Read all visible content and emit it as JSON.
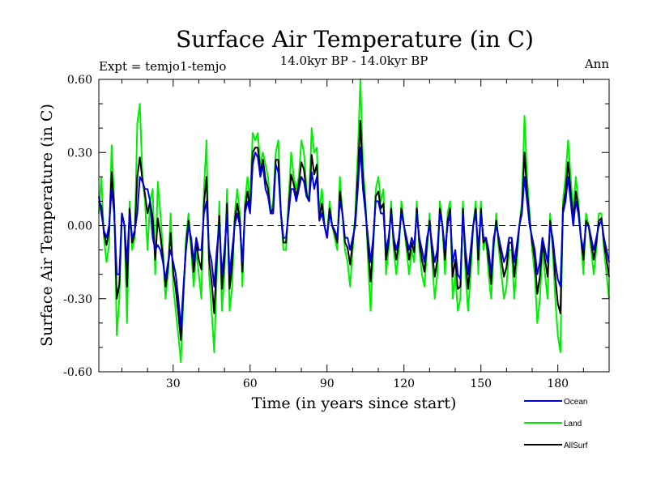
{
  "chart_data": {
    "type": "line",
    "title": "Surface Air Temperature (in C)",
    "subtitle": "14.0kyr BP - 14.0kyr BP",
    "left_label": "Expt = temjo1-temjo",
    "right_label": "Ann",
    "xlabel": "Time (in years since start)",
    "ylabel": "Surface Air Temperature (in C)",
    "xlim": [
      1,
      200
    ],
    "ylim": [
      -0.6,
      0.6
    ],
    "xticks": [
      30,
      60,
      90,
      120,
      150,
      180
    ],
    "yticks": [
      -0.6,
      -0.3,
      0.0,
      0.3,
      0.6
    ],
    "ytick_labels": [
      "-0.60",
      "-0.30",
      "0.00",
      "0.30",
      "0.60"
    ],
    "zero_line": true,
    "legend_position": "bottom-right, below plot",
    "series": [
      {
        "name": "Ocean",
        "color": "#0000dd",
        "values": [
          0.12,
          0.05,
          -0.02,
          -0.05,
          0.0,
          0.15,
          0.05,
          -0.2,
          -0.2,
          0.05,
          0.0,
          -0.15,
          0.05,
          -0.05,
          -0.02,
          0.05,
          0.2,
          0.18,
          0.15,
          0.15,
          0.1,
          -0.05,
          -0.1,
          -0.08,
          -0.1,
          -0.15,
          -0.22,
          -0.15,
          -0.1,
          -0.15,
          -0.2,
          -0.3,
          -0.42,
          -0.25,
          -0.1,
          0.0,
          -0.05,
          -0.15,
          -0.05,
          -0.1,
          -0.1,
          0.05,
          0.1,
          -0.1,
          -0.15,
          -0.25,
          -0.1,
          0.0,
          -0.2,
          -0.1,
          0.05,
          -0.2,
          -0.1,
          0.0,
          0.05,
          0.0,
          -0.15,
          0.05,
          0.1,
          0.05,
          0.25,
          0.3,
          0.28,
          0.2,
          0.25,
          0.15,
          0.12,
          0.05,
          0.05,
          0.25,
          0.22,
          0.05,
          -0.05,
          -0.05,
          0.05,
          0.15,
          0.15,
          0.1,
          0.15,
          0.2,
          0.18,
          0.12,
          0.1,
          0.22,
          0.15,
          0.2,
          0.02,
          0.05,
          0.0,
          -0.05,
          0.05,
          0.0,
          -0.02,
          -0.05,
          0.1,
          0.05,
          -0.05,
          -0.05,
          -0.1,
          -0.05,
          0.0,
          0.15,
          0.32,
          0.15,
          0.05,
          -0.05,
          -0.15,
          -0.05,
          0.1,
          0.1,
          0.05,
          0.05,
          -0.1,
          -0.05,
          0.05,
          -0.05,
          -0.1,
          -0.05,
          0.05,
          0.0,
          -0.05,
          -0.1,
          -0.05,
          -0.08,
          0.05,
          -0.05,
          -0.1,
          -0.15,
          -0.05,
          0.0,
          -0.08,
          -0.15,
          -0.1,
          0.05,
          0.0,
          -0.1,
          0.0,
          0.05,
          -0.15,
          -0.1,
          -0.2,
          -0.22,
          0.05,
          -0.1,
          -0.2,
          -0.1,
          0.0,
          0.05,
          -0.1,
          0.05,
          -0.05,
          -0.05,
          -0.1,
          -0.2,
          -0.05,
          0.0,
          -0.05,
          -0.1,
          -0.15,
          -0.12,
          -0.05,
          -0.05,
          -0.15,
          -0.08,
          0.0,
          0.05,
          0.2,
          0.1,
          0.0,
          -0.05,
          -0.1,
          -0.2,
          -0.15,
          -0.05,
          -0.1,
          -0.15,
          0.0,
          -0.05,
          -0.15,
          -0.22,
          -0.25,
          0.05,
          0.1,
          0.2,
          0.1,
          0.0,
          0.1,
          0.05,
          -0.05,
          -0.1,
          0.0,
          0.0,
          -0.05,
          -0.1,
          -0.05,
          0.0,
          0.02,
          -0.05,
          -0.1,
          -0.15
        ]
      },
      {
        "name": "Land",
        "color": "#00ee00",
        "values": [
          0.05,
          0.2,
          -0.05,
          -0.15,
          -0.08,
          0.33,
          0.1,
          -0.45,
          -0.3,
          0.05,
          0.0,
          -0.4,
          0.1,
          -0.1,
          -0.05,
          0.42,
          0.5,
          0.2,
          0.1,
          -0.1,
          0.1,
          0.15,
          -0.2,
          0.18,
          0.05,
          -0.1,
          -0.3,
          -0.2,
          0.05,
          -0.25,
          -0.35,
          -0.45,
          -0.56,
          -0.3,
          -0.05,
          0.05,
          -0.1,
          -0.25,
          -0.1,
          -0.2,
          -0.3,
          0.15,
          0.35,
          -0.2,
          -0.35,
          -0.52,
          -0.2,
          0.1,
          -0.35,
          -0.2,
          0.15,
          -0.35,
          -0.25,
          0.05,
          0.15,
          0.05,
          -0.25,
          0.1,
          0.2,
          0.1,
          0.38,
          0.35,
          0.38,
          0.25,
          0.3,
          0.25,
          0.2,
          0.05,
          0.1,
          0.3,
          0.35,
          0.05,
          -0.1,
          -0.1,
          0.1,
          0.3,
          0.2,
          0.15,
          0.2,
          0.35,
          0.3,
          0.15,
          0.1,
          0.4,
          0.3,
          0.32,
          0.05,
          0.15,
          0.0,
          -0.05,
          0.1,
          0.0,
          -0.05,
          -0.1,
          0.2,
          0.05,
          -0.1,
          -0.15,
          -0.25,
          -0.1,
          0.05,
          0.3,
          0.6,
          0.25,
          0.1,
          -0.15,
          -0.35,
          -0.1,
          0.15,
          0.2,
          0.1,
          0.15,
          -0.2,
          -0.1,
          0.1,
          -0.1,
          -0.2,
          -0.1,
          0.1,
          0.0,
          -0.1,
          -0.2,
          -0.1,
          -0.15,
          0.1,
          -0.1,
          -0.2,
          -0.25,
          -0.1,
          0.05,
          -0.15,
          -0.3,
          -0.2,
          0.1,
          0.0,
          -0.2,
          0.05,
          0.1,
          -0.3,
          -0.2,
          -0.35,
          -0.3,
          0.1,
          -0.2,
          -0.35,
          -0.2,
          0.0,
          0.1,
          -0.2,
          0.1,
          -0.1,
          -0.05,
          -0.2,
          -0.3,
          -0.1,
          0.05,
          -0.1,
          -0.2,
          -0.3,
          -0.25,
          -0.1,
          -0.1,
          -0.3,
          -0.15,
          0.0,
          0.1,
          0.45,
          0.2,
          0.05,
          -0.1,
          -0.2,
          -0.4,
          -0.3,
          -0.1,
          -0.2,
          -0.3,
          0.05,
          -0.1,
          -0.3,
          -0.45,
          -0.52,
          0.1,
          0.2,
          0.35,
          0.2,
          0.05,
          0.2,
          0.1,
          -0.05,
          -0.2,
          0.05,
          0.0,
          -0.1,
          -0.2,
          -0.1,
          0.05,
          0.05,
          -0.1,
          -0.2,
          -0.3
        ]
      },
      {
        "name": "AllSurf",
        "color": "#000000",
        "values": [
          0.1,
          0.08,
          -0.03,
          -0.08,
          -0.02,
          0.22,
          0.07,
          -0.3,
          -0.24,
          0.05,
          0.0,
          -0.25,
          0.07,
          -0.07,
          -0.03,
          0.2,
          0.28,
          0.19,
          0.13,
          0.05,
          0.1,
          0.03,
          -0.14,
          0.03,
          -0.04,
          -0.13,
          -0.25,
          -0.17,
          -0.03,
          -0.19,
          -0.26,
          -0.36,
          -0.47,
          -0.27,
          -0.08,
          0.02,
          -0.07,
          -0.19,
          -0.07,
          -0.14,
          -0.18,
          0.09,
          0.2,
          -0.14,
          -0.23,
          -0.36,
          -0.14,
          0.04,
          -0.26,
          -0.14,
          0.09,
          -0.26,
          -0.16,
          0.02,
          0.09,
          0.02,
          -0.19,
          0.07,
          0.14,
          0.07,
          0.3,
          0.32,
          0.32,
          0.22,
          0.27,
          0.19,
          0.15,
          0.05,
          0.07,
          0.27,
          0.27,
          0.05,
          -0.07,
          -0.07,
          0.07,
          0.21,
          0.17,
          0.12,
          0.17,
          0.26,
          0.23,
          0.13,
          0.1,
          0.29,
          0.21,
          0.25,
          0.03,
          0.09,
          0.0,
          -0.05,
          0.07,
          0.0,
          -0.03,
          -0.07,
          0.14,
          0.05,
          -0.07,
          -0.09,
          -0.16,
          -0.07,
          0.02,
          0.21,
          0.43,
          0.19,
          0.07,
          -0.09,
          -0.23,
          -0.07,
          0.12,
          0.14,
          0.07,
          0.09,
          -0.14,
          -0.07,
          0.07,
          -0.07,
          -0.14,
          -0.07,
          0.07,
          0.0,
          -0.07,
          -0.14,
          -0.07,
          -0.11,
          0.07,
          -0.07,
          -0.14,
          -0.19,
          -0.07,
          0.02,
          -0.11,
          -0.21,
          -0.14,
          0.07,
          0.0,
          -0.14,
          0.02,
          0.07,
          -0.21,
          -0.14,
          -0.26,
          -0.25,
          0.07,
          -0.14,
          -0.26,
          -0.14,
          0.0,
          0.07,
          -0.14,
          0.07,
          -0.07,
          -0.05,
          -0.14,
          -0.24,
          -0.07,
          0.02,
          -0.07,
          -0.14,
          -0.21,
          -0.17,
          -0.07,
          -0.07,
          -0.21,
          -0.11,
          0.0,
          0.07,
          0.3,
          0.14,
          0.02,
          -0.07,
          -0.14,
          -0.28,
          -0.21,
          -0.07,
          -0.14,
          -0.21,
          0.02,
          -0.07,
          -0.21,
          -0.32,
          -0.36,
          0.07,
          0.14,
          0.26,
          0.14,
          0.02,
          0.14,
          0.07,
          -0.05,
          -0.14,
          0.02,
          0.0,
          -0.07,
          -0.14,
          -0.07,
          0.02,
          0.03,
          -0.07,
          -0.14,
          -0.21
        ]
      }
    ]
  }
}
